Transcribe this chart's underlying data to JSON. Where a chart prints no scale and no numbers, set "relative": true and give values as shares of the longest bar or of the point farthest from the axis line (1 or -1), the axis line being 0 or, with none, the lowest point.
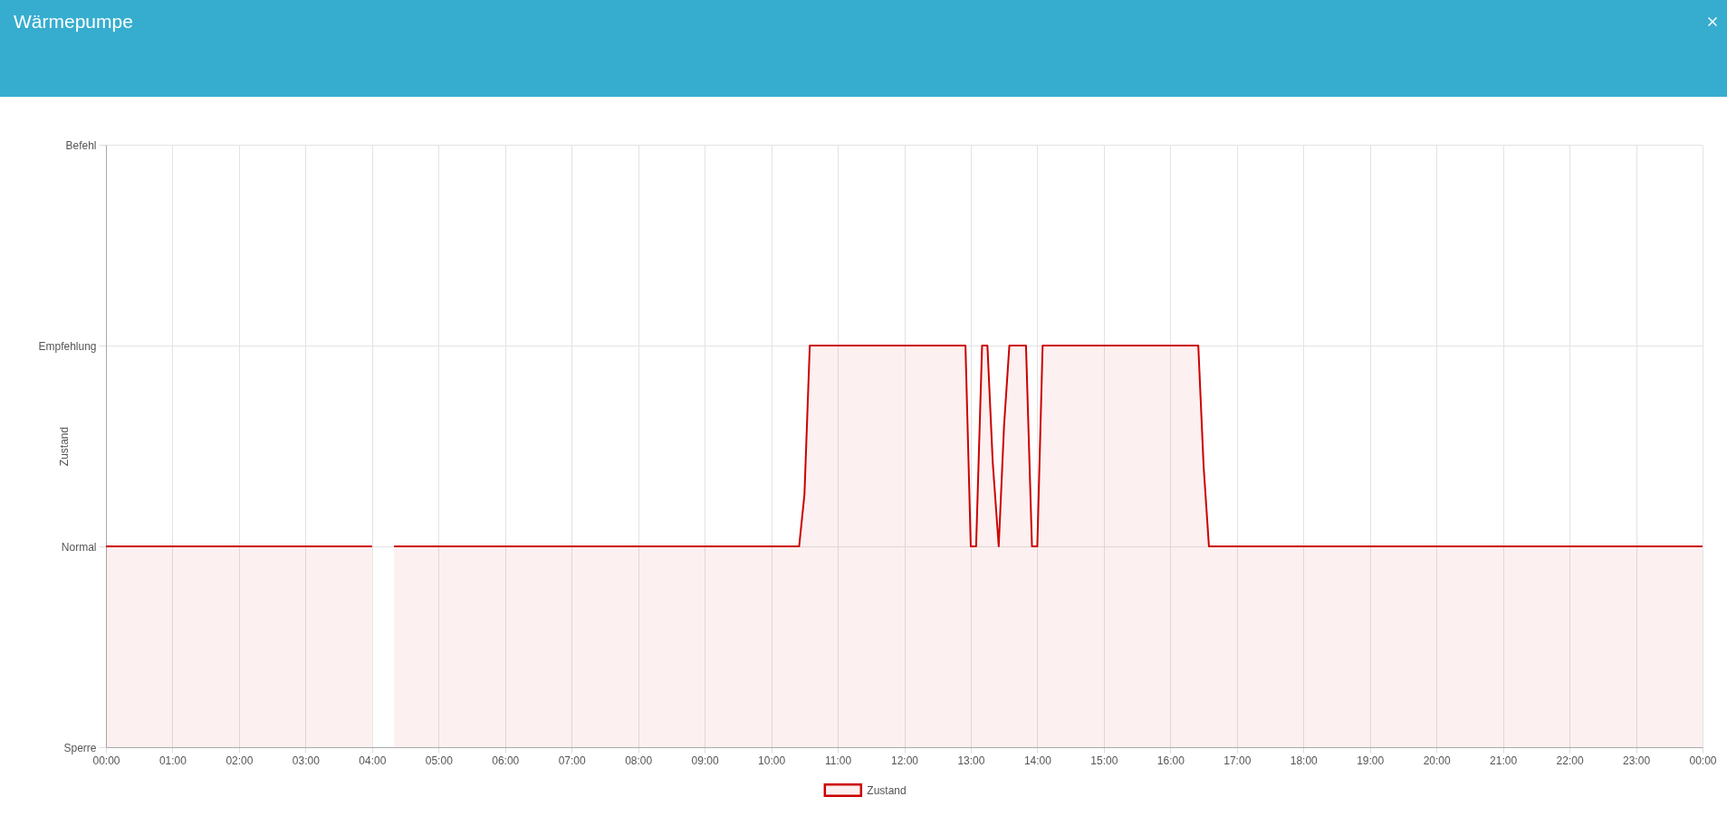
{
  "chart_data": {
    "type": "area",
    "title": "Wärmepumpe",
    "ylabel": "Zustand",
    "relative": true,
    "x": [
      0,
      4,
      4.17,
      4.33,
      10.42,
      10.5,
      10.58,
      12.92,
      13,
      13.08,
      13.17,
      13.25,
      13.33,
      13.42,
      13.5,
      13.58,
      13.83,
      13.92,
      14,
      14.08,
      16.42,
      16.5,
      16.58,
      24
    ],
    "series": [
      {
        "name": "Zustand",
        "color": "#cc0000",
        "values": [
          0.5,
          0.5,
          null,
          0.5,
          0.5,
          0.63,
          1,
          1,
          0.5,
          0.5,
          1,
          1,
          0.71,
          0.5,
          0.8,
          1,
          1,
          0.5,
          0.5,
          1,
          1,
          0.7,
          0.5,
          0.5
        ]
      }
    ],
    "xlim": [
      0,
      24
    ],
    "xticks": [
      {
        "value": 0,
        "label": "00:00"
      },
      {
        "value": 1,
        "label": "01:00"
      },
      {
        "value": 2,
        "label": "02:00"
      },
      {
        "value": 3,
        "label": "03:00"
      },
      {
        "value": 4,
        "label": "04:00"
      },
      {
        "value": 5,
        "label": "05:00"
      },
      {
        "value": 6,
        "label": "06:00"
      },
      {
        "value": 7,
        "label": "07:00"
      },
      {
        "value": 8,
        "label": "08:00"
      },
      {
        "value": 9,
        "label": "09:00"
      },
      {
        "value": 10,
        "label": "10:00"
      },
      {
        "value": 11,
        "label": "11:00"
      },
      {
        "value": 12,
        "label": "12:00"
      },
      {
        "value": 13,
        "label": "13:00"
      },
      {
        "value": 14,
        "label": "14:00"
      },
      {
        "value": 15,
        "label": "15:00"
      },
      {
        "value": 16,
        "label": "16:00"
      },
      {
        "value": 17,
        "label": "17:00"
      },
      {
        "value": 18,
        "label": "18:00"
      },
      {
        "value": 19,
        "label": "19:00"
      },
      {
        "value": 20,
        "label": "20:00"
      },
      {
        "value": 21,
        "label": "21:00"
      },
      {
        "value": 22,
        "label": "22:00"
      },
      {
        "value": 23,
        "label": "23:00"
      },
      {
        "value": 24,
        "label": "00:00"
      }
    ],
    "ylim": [
      0,
      1.5
    ],
    "y_categories": [
      "Befehl",
      "Empfehlung",
      "Normal",
      "Sperre"
    ],
    "grid": true,
    "legend": "bottom"
  }
}
